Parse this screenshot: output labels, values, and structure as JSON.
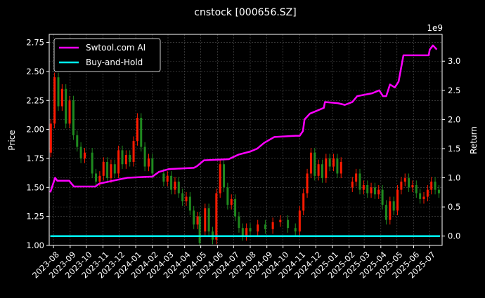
{
  "chart_data": {
    "type": "line",
    "title": "cnstock [000656.SZ]",
    "ylabel": "Price",
    "y2label": "Return",
    "y2_offset_label": "1e9",
    "ylim": [
      1.0,
      2.82
    ],
    "y2lim": [
      -0.16,
      3.46
    ],
    "xlim": [
      "2023-07-24",
      "2025-07-24"
    ],
    "grid": true,
    "legend_position": "top-left",
    "yticks": [
      "1.00",
      "1.25",
      "1.50",
      "1.75",
      "2.00",
      "2.25",
      "2.50",
      "2.75"
    ],
    "y2ticks": [
      "0.0",
      "0.5",
      "1.0",
      "1.5",
      "2.0",
      "2.5",
      "3.0"
    ],
    "xticks": [
      "2023-08",
      "2023-09",
      "2023-10",
      "2023-11",
      "2023-12",
      "2024-01",
      "2024-02",
      "2024-03",
      "2024-04",
      "2024-05",
      "2024-06",
      "2024-07",
      "2024-08",
      "2024-09",
      "2024-10",
      "2024-11",
      "2024-12",
      "2025-01",
      "2025-02",
      "2025-03",
      "2025-04",
      "2025-05",
      "2025-06",
      "2025-07"
    ],
    "colors": {
      "up": "#ff1a00",
      "down": "#1f8a1f",
      "strategy": "#ff00ff",
      "buyhold": "#00ffff"
    },
    "price": [
      [
        "2023-07-27",
        1.8,
        2.05
      ],
      [
        "2023-08-03",
        2.05,
        2.45
      ],
      [
        "2023-08-10",
        2.45,
        2.2
      ],
      [
        "2023-08-17",
        2.2,
        2.35
      ],
      [
        "2023-08-24",
        2.35,
        2.05
      ],
      [
        "2023-08-31",
        2.05,
        2.25
      ],
      [
        "2023-09-07",
        2.25,
        1.95
      ],
      [
        "2023-09-14",
        1.95,
        1.85
      ],
      [
        "2023-09-21",
        1.85,
        1.75
      ],
      [
        "2023-09-28",
        1.75,
        1.8
      ],
      [
        "2023-10-12",
        1.8,
        1.62
      ],
      [
        "2023-10-19",
        1.62,
        1.55
      ],
      [
        "2023-10-26",
        1.55,
        1.6
      ],
      [
        "2023-11-02",
        1.6,
        1.72
      ],
      [
        "2023-11-09",
        1.72,
        1.58
      ],
      [
        "2023-11-16",
        1.58,
        1.7
      ],
      [
        "2023-11-23",
        1.7,
        1.62
      ],
      [
        "2023-11-30",
        1.62,
        1.82
      ],
      [
        "2023-12-07",
        1.82,
        1.7
      ],
      [
        "2023-12-14",
        1.7,
        1.78
      ],
      [
        "2023-12-21",
        1.78,
        1.72
      ],
      [
        "2023-12-28",
        1.72,
        1.9
      ],
      [
        "2024-01-04",
        1.9,
        2.1
      ],
      [
        "2024-01-11",
        2.1,
        1.85
      ],
      [
        "2024-01-18",
        1.85,
        1.68
      ],
      [
        "2024-01-25",
        1.68,
        1.75
      ],
      [
        "2024-02-01",
        1.75,
        1.62
      ],
      [
        "2024-02-22",
        1.62,
        1.55
      ],
      [
        "2024-02-29",
        1.55,
        1.6
      ],
      [
        "2024-03-07",
        1.6,
        1.48
      ],
      [
        "2024-03-14",
        1.48,
        1.55
      ],
      [
        "2024-03-21",
        1.55,
        1.45
      ],
      [
        "2024-03-28",
        1.45,
        1.38
      ],
      [
        "2024-04-04",
        1.38,
        1.42
      ],
      [
        "2024-04-11",
        1.42,
        1.3
      ],
      [
        "2024-04-18",
        1.3,
        1.18
      ],
      [
        "2024-04-25",
        1.18,
        1.25
      ],
      [
        "2024-04-29",
        1.25,
        1.02
      ],
      [
        "2024-05-09",
        1.12,
        1.32
      ],
      [
        "2024-05-16",
        1.32,
        1.12
      ],
      [
        "2024-05-23",
        1.12,
        1.05
      ],
      [
        "2024-05-30",
        1.05,
        1.45
      ],
      [
        "2024-06-06",
        1.45,
        1.7
      ],
      [
        "2024-06-13",
        1.7,
        1.5
      ],
      [
        "2024-06-20",
        1.5,
        1.35
      ],
      [
        "2024-06-27",
        1.35,
        1.4
      ],
      [
        "2024-07-04",
        1.4,
        1.25
      ],
      [
        "2024-07-11",
        1.25,
        1.15
      ],
      [
        "2024-07-18",
        1.15,
        1.08
      ],
      [
        "2024-07-25",
        1.08,
        1.15
      ],
      [
        "2024-08-01",
        1.15,
        1.12
      ],
      [
        "2024-08-15",
        1.12,
        1.18
      ],
      [
        "2024-08-29",
        1.18,
        1.14
      ],
      [
        "2024-09-12",
        1.14,
        1.2
      ],
      [
        "2024-09-26",
        1.2,
        1.22
      ],
      [
        "2024-10-10",
        1.22,
        1.15
      ],
      [
        "2024-10-24",
        1.15,
        1.12
      ],
      [
        "2024-11-01",
        1.12,
        1.3
      ],
      [
        "2024-11-08",
        1.3,
        1.45
      ],
      [
        "2024-11-15",
        1.45,
        1.62
      ],
      [
        "2024-11-22",
        1.62,
        1.8
      ],
      [
        "2024-11-29",
        1.8,
        1.6
      ],
      [
        "2024-12-06",
        1.6,
        1.7
      ],
      [
        "2024-12-13",
        1.7,
        1.58
      ],
      [
        "2024-12-20",
        1.58,
        1.75
      ],
      [
        "2024-12-27",
        1.75,
        1.68
      ],
      [
        "2025-01-03",
        1.68,
        1.75
      ],
      [
        "2025-01-10",
        1.75,
        1.62
      ],
      [
        "2025-01-17",
        1.62,
        1.72
      ],
      [
        "2025-02-07",
        1.5,
        1.55
      ],
      [
        "2025-02-14",
        1.55,
        1.62
      ],
      [
        "2025-02-21",
        1.62,
        1.48
      ],
      [
        "2025-02-28",
        1.48,
        1.52
      ],
      [
        "2025-03-07",
        1.52,
        1.45
      ],
      [
        "2025-03-14",
        1.45,
        1.5
      ],
      [
        "2025-03-21",
        1.5,
        1.44
      ],
      [
        "2025-03-28",
        1.44,
        1.48
      ],
      [
        "2025-04-04",
        1.48,
        1.35
      ],
      [
        "2025-04-11",
        1.35,
        1.22
      ],
      [
        "2025-04-18",
        1.22,
        1.38
      ],
      [
        "2025-04-25",
        1.38,
        1.3
      ],
      [
        "2025-05-02",
        1.3,
        1.48
      ],
      [
        "2025-05-09",
        1.48,
        1.55
      ],
      [
        "2025-05-16",
        1.55,
        1.58
      ],
      [
        "2025-05-23",
        1.58,
        1.5
      ],
      [
        "2025-05-30",
        1.5,
        1.52
      ],
      [
        "2025-06-06",
        1.52,
        1.45
      ],
      [
        "2025-06-13",
        1.45,
        1.4
      ],
      [
        "2025-06-20",
        1.4,
        1.42
      ],
      [
        "2025-06-27",
        1.42,
        1.48
      ],
      [
        "2025-07-04",
        1.48,
        1.55
      ],
      [
        "2025-07-11",
        1.55,
        1.48
      ],
      [
        "2025-07-18",
        1.48,
        1.45
      ]
    ],
    "series": [
      {
        "name": "Swtool.com AI",
        "points": [
          [
            "2023-07-26",
            0.75
          ],
          [
            "2023-08-04",
            1.0
          ],
          [
            "2023-08-08",
            0.95
          ],
          [
            "2023-08-30",
            0.95
          ],
          [
            "2023-09-08",
            0.85
          ],
          [
            "2023-10-18",
            0.85
          ],
          [
            "2023-10-25",
            0.9
          ],
          [
            "2023-11-20",
            0.95
          ],
          [
            "2023-12-16",
            1.0
          ],
          [
            "2024-02-01",
            1.02
          ],
          [
            "2024-02-13",
            1.1
          ],
          [
            "2024-03-03",
            1.15
          ],
          [
            "2024-04-18",
            1.17
          ],
          [
            "2024-04-24",
            1.2
          ],
          [
            "2024-05-07",
            1.3
          ],
          [
            "2024-06-22",
            1.32
          ],
          [
            "2024-07-11",
            1.4
          ],
          [
            "2024-08-01",
            1.45
          ],
          [
            "2024-08-14",
            1.5
          ],
          [
            "2024-08-27",
            1.6
          ],
          [
            "2024-09-15",
            1.7
          ],
          [
            "2024-10-24",
            1.72
          ],
          [
            "2024-11-01",
            1.72
          ],
          [
            "2024-11-07",
            1.8
          ],
          [
            "2024-11-10",
            2.0
          ],
          [
            "2024-11-20",
            2.1
          ],
          [
            "2024-12-03",
            2.15
          ],
          [
            "2024-12-16",
            2.2
          ],
          [
            "2024-12-18",
            2.3
          ],
          [
            "2025-01-11",
            2.28
          ],
          [
            "2025-01-24",
            2.25
          ],
          [
            "2025-02-07",
            2.3
          ],
          [
            "2025-02-16",
            2.4
          ],
          [
            "2025-03-16",
            2.45
          ],
          [
            "2025-03-29",
            2.5
          ],
          [
            "2025-04-05",
            2.4
          ],
          [
            "2025-04-11",
            2.4
          ],
          [
            "2025-04-18",
            2.6
          ],
          [
            "2025-04-27",
            2.55
          ],
          [
            "2025-05-04",
            2.65
          ],
          [
            "2025-05-13",
            3.1
          ],
          [
            "2025-06-29",
            3.1
          ],
          [
            "2025-07-01",
            3.2
          ],
          [
            "2025-07-07",
            3.27
          ],
          [
            "2025-07-14",
            3.2
          ]
        ]
      },
      {
        "name": "Buy-and-Hold",
        "points": [
          [
            "2023-07-26",
            0.0
          ],
          [
            "2025-07-20",
            0.0
          ]
        ]
      }
    ]
  }
}
